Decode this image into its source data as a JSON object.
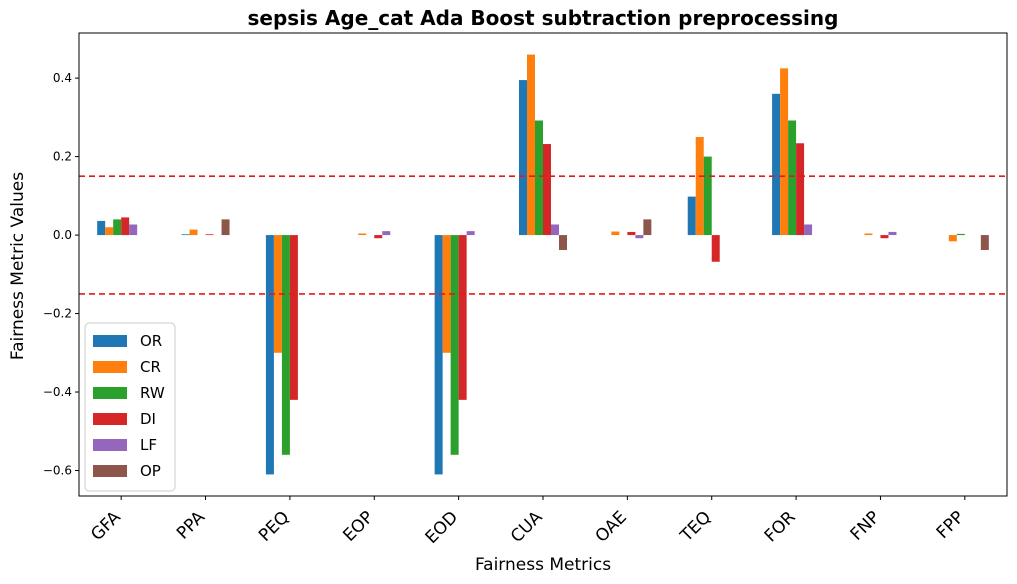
{
  "chart_data": {
    "type": "bar",
    "title": "sepsis Age_cat Ada Boost subtraction preprocessing",
    "xlabel": "Fairness Metrics",
    "ylabel": "Fairness Metric Values",
    "ylim": [
      -0.665,
      0.515
    ],
    "yticks": [
      -0.6,
      -0.4,
      -0.2,
      0.0,
      0.2,
      0.4
    ],
    "ytick_labels": [
      "−0.6",
      "−0.4",
      "−0.2",
      "0.0",
      "0.2",
      "0.4"
    ],
    "categories": [
      "GFA",
      "PPA",
      "PEQ",
      "EOP",
      "EOD",
      "CUA",
      "OAE",
      "TEQ",
      "FOR",
      "FNP",
      "FPP"
    ],
    "series": [
      {
        "name": "OR",
        "color": "#1f77b4",
        "values": [
          0.036,
          0.002,
          -0.61,
          0.0,
          -0.61,
          0.395,
          0.0,
          0.098,
          0.36,
          0.0,
          0.0
        ]
      },
      {
        "name": "CR",
        "color": "#ff7f0e",
        "values": [
          0.02,
          0.014,
          -0.3,
          0.004,
          -0.3,
          0.46,
          0.009,
          0.25,
          0.425,
          0.004,
          -0.016
        ]
      },
      {
        "name": "RW",
        "color": "#2ca02c",
        "values": [
          0.04,
          0.0,
          -0.56,
          0.0,
          -0.56,
          0.292,
          0.0,
          0.2,
          0.292,
          0.0,
          0.003
        ]
      },
      {
        "name": "DI",
        "color": "#d62728",
        "values": [
          0.045,
          0.002,
          -0.42,
          -0.008,
          -0.42,
          0.232,
          0.008,
          -0.068,
          0.234,
          -0.008,
          0.0
        ]
      },
      {
        "name": "LF",
        "color": "#9467bd",
        "values": [
          0.027,
          0.0,
          0.0,
          0.01,
          0.01,
          0.027,
          -0.008,
          0.0,
          0.027,
          0.008,
          0.0
        ]
      },
      {
        "name": "OP",
        "color": "#8c564b",
        "values": [
          0.0,
          0.04,
          0.0,
          0.0,
          0.0,
          -0.038,
          0.04,
          0.0,
          0.0,
          0.0,
          -0.038
        ]
      }
    ],
    "reference_lines": [
      0.15,
      -0.15
    ],
    "reference_line_color": "#e31a1c",
    "legend_position": "lower-left",
    "grid": false
  }
}
